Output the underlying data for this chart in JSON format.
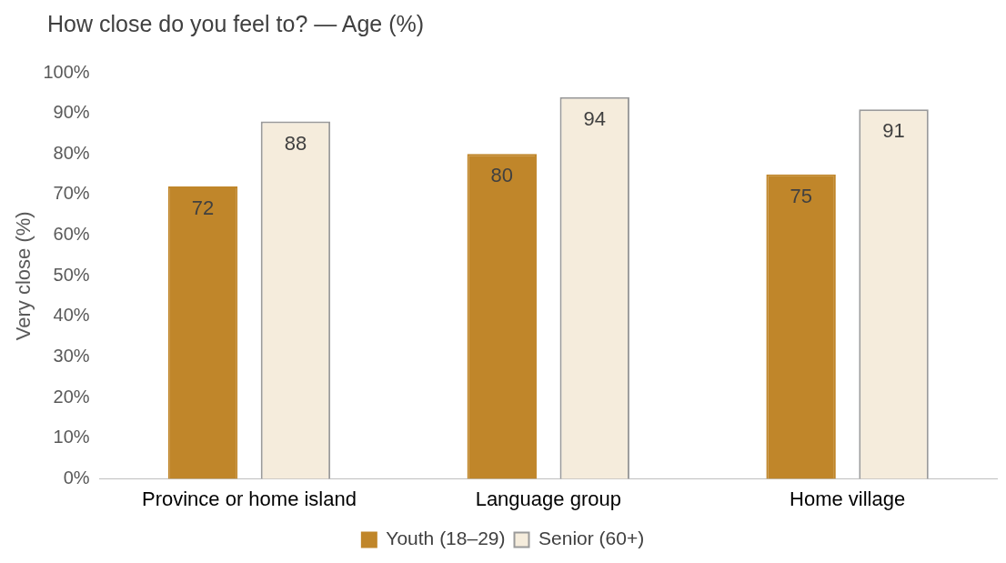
{
  "chart_data": {
    "type": "bar",
    "title": "How close do you feel to? — Age (%)",
    "ylabel": "Very close (%)",
    "categories": [
      "Province or home island",
      "Language group",
      "Home village"
    ],
    "series": [
      {
        "name": "Youth (18–29)",
        "color": "#c0862a",
        "values": [
          72,
          80,
          75
        ]
      },
      {
        "name": "Senior (60+)",
        "color": "#f5ecdc",
        "values": [
          88,
          94,
          91
        ]
      }
    ],
    "ylim": [
      0,
      100
    ],
    "yticks": [
      {
        "value": 0,
        "label": "0%"
      },
      {
        "value": 10,
        "label": "10%"
      },
      {
        "value": 20,
        "label": "20%"
      },
      {
        "value": 30,
        "label": "30%"
      },
      {
        "value": 40,
        "label": "40%"
      },
      {
        "value": 50,
        "label": "50%"
      },
      {
        "value": 60,
        "label": "60%"
      },
      {
        "value": 70,
        "label": "70%"
      },
      {
        "value": 80,
        "label": "80%"
      },
      {
        "value": 90,
        "label": "90%"
      },
      {
        "value": 100,
        "label": "100%"
      }
    ],
    "grid": false,
    "legend": "bottom",
    "data_labels": true
  }
}
